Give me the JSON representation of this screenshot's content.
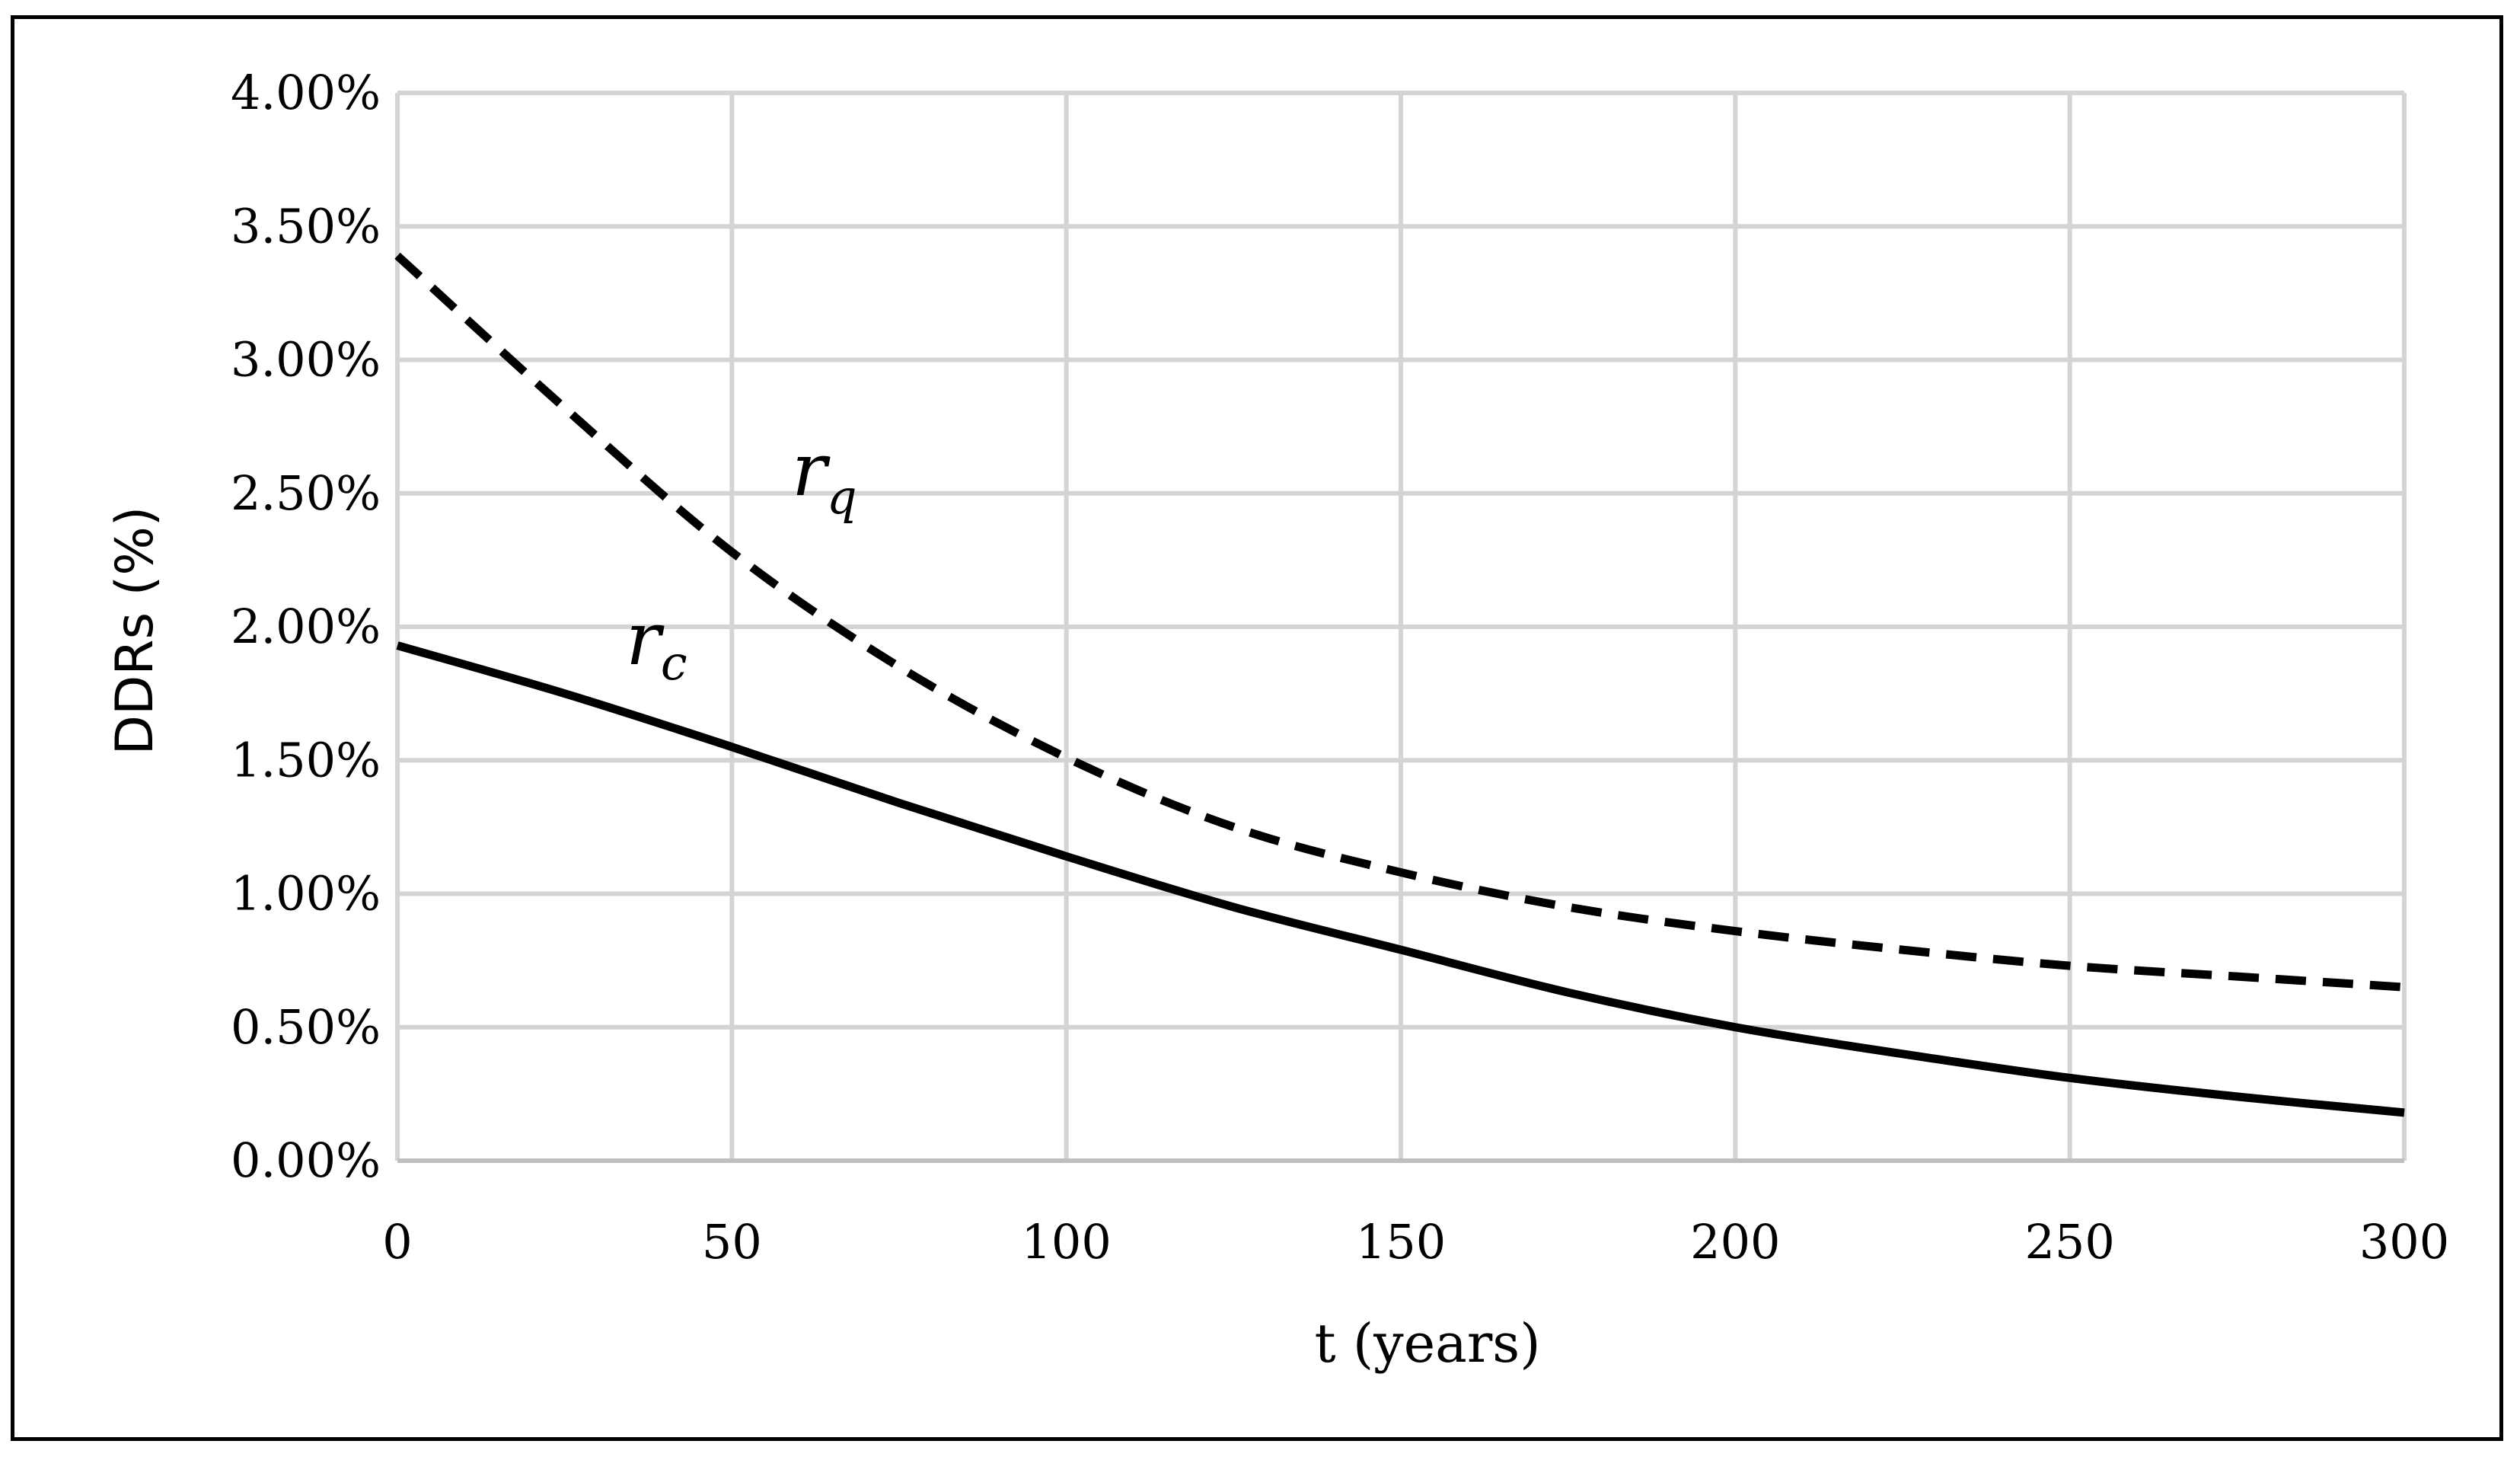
{
  "chart_data": {
    "type": "line",
    "xlabel": "t (years)",
    "ylabel": "DDRs (%)",
    "xlim": [
      0,
      300
    ],
    "ylim": [
      0,
      4
    ],
    "x_ticks": [
      0,
      50,
      100,
      150,
      200,
      250,
      300
    ],
    "x_tick_labels": [
      "0",
      "50",
      "100",
      "150",
      "200",
      "250",
      "300"
    ],
    "y_ticks": [
      0,
      0.5,
      1,
      1.5,
      2,
      2.5,
      3,
      3.5,
      4
    ],
    "y_tick_labels": [
      "0.00%",
      "0.50%",
      "1.00%",
      "1.50%",
      "2.00%",
      "2.50%",
      "3.00%",
      "3.50%",
      "4.00%"
    ],
    "grid": true,
    "series": [
      {
        "name": "r_q",
        "label_main": "r",
        "label_sub": "q",
        "style": "dashed",
        "color": "#000000",
        "x": [
          0,
          25,
          50,
          75,
          100,
          125,
          150,
          175,
          200,
          225,
          250,
          275,
          300
        ],
        "values": [
          3.39,
          2.82,
          2.28,
          1.85,
          1.51,
          1.25,
          1.08,
          0.95,
          0.86,
          0.79,
          0.73,
          0.69,
          0.65
        ]
      },
      {
        "name": "r_c",
        "label_main": "r",
        "label_sub": "c",
        "style": "solid",
        "color": "#000000",
        "x": [
          0,
          25,
          50,
          75,
          100,
          125,
          150,
          175,
          200,
          225,
          250,
          275,
          300
        ],
        "values": [
          1.93,
          1.75,
          1.55,
          1.34,
          1.14,
          0.95,
          0.79,
          0.63,
          0.5,
          0.4,
          0.31,
          0.24,
          0.18
        ]
      }
    ]
  }
}
